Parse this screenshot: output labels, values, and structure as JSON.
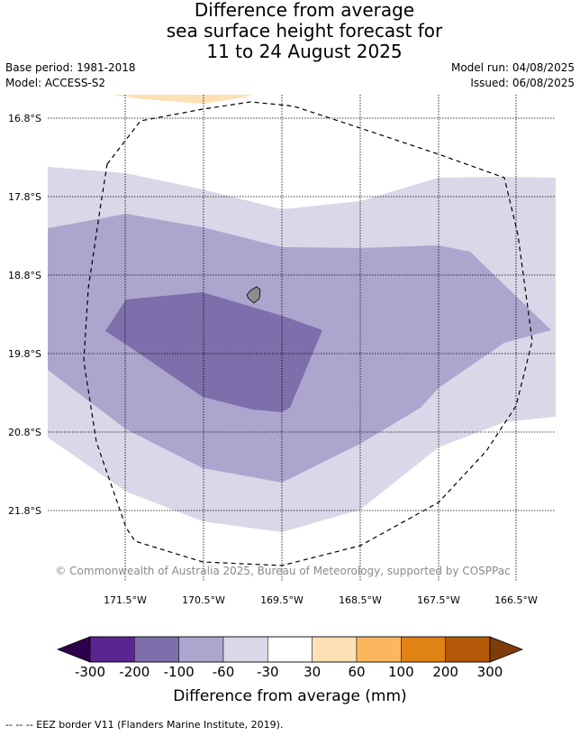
{
  "title": {
    "line1": "Difference from average",
    "line2": "sea surface height forecast for",
    "line3": "11 to 24 August 2025"
  },
  "meta": {
    "base_period": "Base period: 1981-2018",
    "model": "Model: ACCESS-S2",
    "model_run": "Model run: 04/08/2025",
    "issued": "Issued: 06/08/2025"
  },
  "map": {
    "latitude_labels": [
      "16.8°S",
      "17.8°S",
      "18.8°S",
      "19.8°S",
      "20.8°S",
      "21.8°S"
    ],
    "longitude_labels": [
      "171.5°W",
      "170.5°W",
      "169.5°W",
      "168.5°W",
      "167.5°W",
      "166.5°W"
    ],
    "copyright": "© Commonwealth of Australia 2025, Bureau of Meteorology, supported by COSPPac",
    "fill_colors": {
      "-300_-200": "#5a2590",
      "-200_-100": "#7e6eab",
      "-100_-60": "#aca6cf",
      "-60_-30": "#d8d8e8",
      "-30_30": "#ffffff",
      "30_60": "#fde0b4",
      "60_100": "#fbb65e",
      "100_200": "#e08214",
      "200_300": "#b35806"
    },
    "island_color": "#8c8c8c"
  },
  "colorbar": {
    "labels": [
      "-300",
      "-200",
      "-100",
      "-60",
      "-30",
      "30",
      "60",
      "100",
      "200",
      "300"
    ],
    "colors": [
      "#5a2590",
      "#7e6eab",
      "#aca6cf",
      "#d8d8e8",
      "#ffffff",
      "#fde0b4",
      "#fbb65e",
      "#e08214",
      "#b35806"
    ],
    "under_color": "#2d004b",
    "over_color": "#7f3b08",
    "title": "Difference from average (mm)"
  },
  "footer": "--  --  -- EEZ border V11 (Flanders Marine Institute, 2019)."
}
